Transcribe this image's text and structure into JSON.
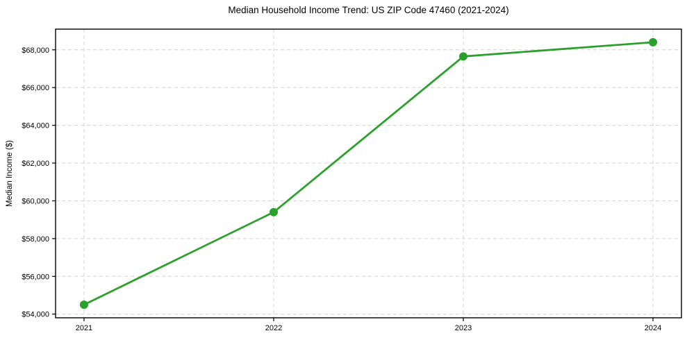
{
  "chart_data": {
    "type": "line",
    "title": "Median Household Income Trend: US ZIP Code 47460 (2021-2024)",
    "xlabel": "",
    "ylabel": "Median Income ($)",
    "x": [
      2021,
      2022,
      2023,
      2024
    ],
    "x_tick_labels": [
      "2021",
      "2022",
      "2023",
      "2024"
    ],
    "y_ticks": [
      54000,
      56000,
      58000,
      60000,
      62000,
      64000,
      66000,
      68000
    ],
    "y_tick_labels": [
      "$54,000",
      "$56,000",
      "$58,000",
      "$60,000",
      "$62,000",
      "$64,000",
      "$66,000",
      "$68,000"
    ],
    "series": [
      {
        "name": "median-household-income",
        "color": "#2ca02c",
        "values": [
          54500,
          59400,
          67650,
          68400
        ]
      }
    ],
    "xlim": [
      2020.85,
      2024.15
    ],
    "ylim": [
      53805,
      69095
    ],
    "grid": true,
    "grid_line_style": "dashed",
    "grid_color": "#d4d4d4",
    "axis_frame_color": "#000000",
    "tick_label_color": "#000000",
    "legend_position": "none",
    "marker": "circle",
    "marker_size": 6,
    "line_width": 2.8
  }
}
